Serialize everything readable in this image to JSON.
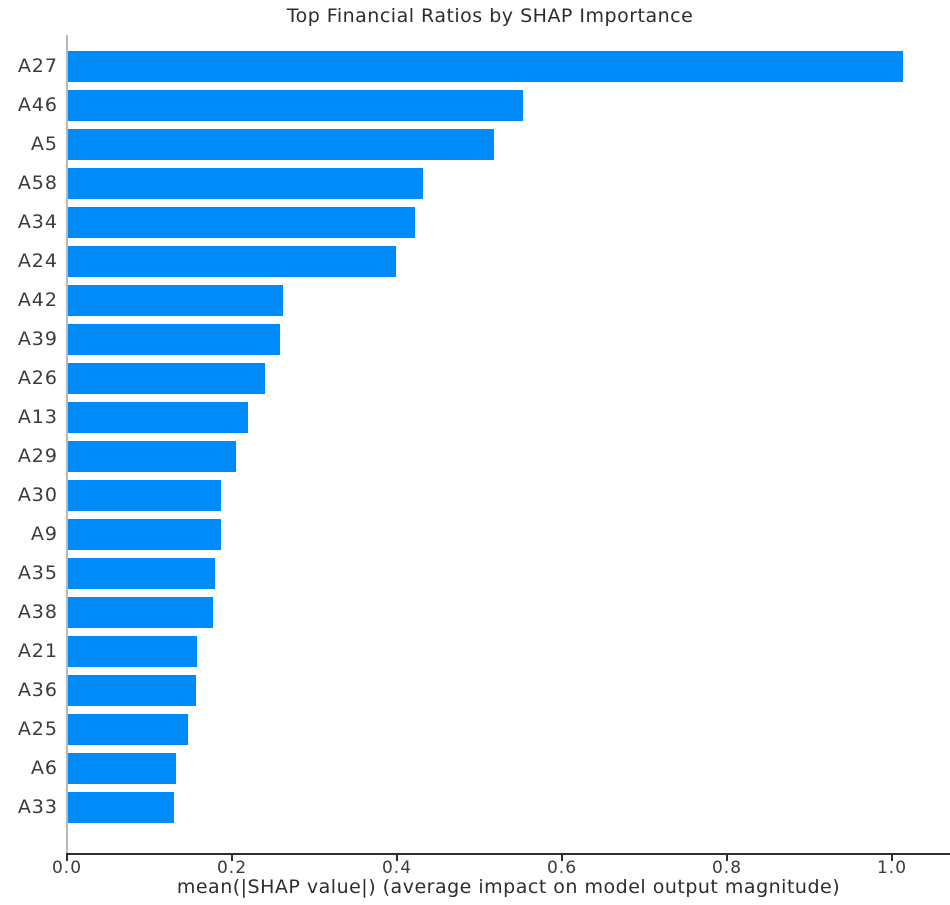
{
  "chart_data": {
    "type": "bar",
    "orientation": "horizontal",
    "title": "Top Financial Ratios by SHAP Importance",
    "xlabel": "mean(|SHAP value|) (average impact on model output magnitude)",
    "ylabel": "",
    "categories": [
      "A27",
      "A46",
      "A5",
      "A58",
      "A34",
      "A24",
      "A42",
      "A39",
      "A26",
      "A13",
      "A29",
      "A30",
      "A9",
      "A35",
      "A38",
      "A21",
      "A36",
      "A25",
      "A6",
      "A33"
    ],
    "values": [
      1.012,
      0.551,
      0.516,
      0.43,
      0.421,
      0.398,
      0.261,
      0.257,
      0.239,
      0.218,
      0.204,
      0.186,
      0.185,
      0.178,
      0.176,
      0.156,
      0.155,
      0.145,
      0.131,
      0.129
    ],
    "xlim": [
      0.0,
      1.07
    ],
    "xticks": [
      0.0,
      0.2,
      0.4,
      0.6,
      0.8,
      1.0
    ],
    "xtick_labels": [
      "0.0",
      "0.2",
      "0.4",
      "0.6",
      "0.8",
      "1.0"
    ],
    "grid": false,
    "legend_position": "none",
    "bar_color": "#008bfb"
  },
  "colors": {
    "bar": "#008bfb",
    "title_text": "#2d2d2d",
    "tick_text": "#3b3b3b",
    "axis_line": "#2f2f2f",
    "left_spine": "#b8b8b8",
    "background": "#ffffff"
  }
}
